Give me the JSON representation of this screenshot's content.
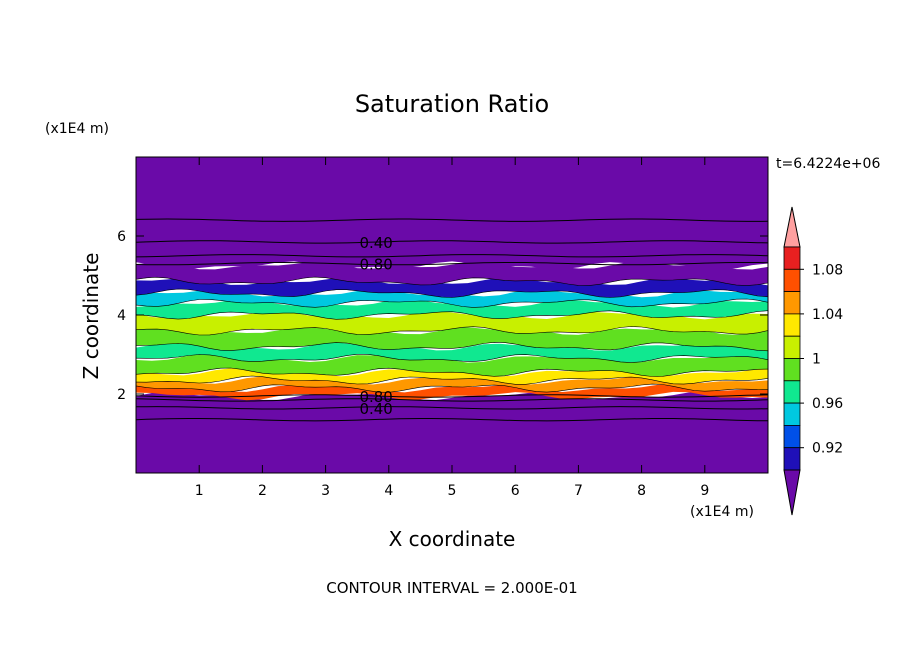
{
  "chart_data": {
    "type": "heatmap",
    "title": "Saturation Ratio",
    "xlabel": "X coordinate",
    "ylabel": "Z coordinate",
    "x_unit": "(x1E4 m)",
    "y_unit": "(x1E4 m)",
    "time_label": "t=6.4224e+06",
    "footer": "CONTOUR INTERVAL = 2.000E-01",
    "xlim": [
      0,
      10
    ],
    "ylim": [
      0,
      8
    ],
    "x_ticks": [
      "1",
      "2",
      "3",
      "4",
      "5",
      "6",
      "7",
      "8",
      "9"
    ],
    "y_ticks": [
      "2",
      "4",
      "6"
    ],
    "colorbar_labels": [
      "0.92",
      "0.96",
      "1",
      "1.04",
      "1.08"
    ],
    "colorbar_colors": [
      "#6a0aa8",
      "#1f10b8",
      "#0050e8",
      "#00c8e0",
      "#10e890",
      "#60e020",
      "#c8f000",
      "#ffe800",
      "#ff9800",
      "#ff5000",
      "#e82020",
      "#ffa0a0"
    ],
    "contour_labels": [
      {
        "text": "0.40",
        "x": 3.8,
        "z": 5.85
      },
      {
        "text": "0.80",
        "x": 3.8,
        "z": 5.3
      },
      {
        "text": "0.80",
        "x": 3.8,
        "z": 1.95
      },
      {
        "text": "0.40",
        "x": 3.8,
        "z": 1.65
      }
    ],
    "bands": [
      {
        "z0": 0.0,
        "z1": 1.95,
        "color": "#6a0aa8"
      },
      {
        "z0": 1.95,
        "z1": 2.15,
        "color": "#ff5000"
      },
      {
        "z0": 2.15,
        "z1": 2.35,
        "color": "#ff9800"
      },
      {
        "z0": 2.35,
        "z1": 2.55,
        "color": "#ffe800"
      },
      {
        "z0": 2.55,
        "z1": 2.9,
        "color": "#60e020"
      },
      {
        "z0": 2.9,
        "z1": 3.2,
        "color": "#10e890"
      },
      {
        "z0": 3.2,
        "z1": 3.6,
        "color": "#60e020"
      },
      {
        "z0": 3.6,
        "z1": 4.0,
        "color": "#c8f000"
      },
      {
        "z0": 4.0,
        "z1": 4.3,
        "color": "#10e890"
      },
      {
        "z0": 4.3,
        "z1": 4.55,
        "color": "#00c8e0"
      },
      {
        "z0": 4.55,
        "z1": 4.85,
        "color": "#1f10b8"
      },
      {
        "z0": 4.85,
        "z1": 5.25,
        "color": "#6a0aa8"
      },
      {
        "z0": 5.25,
        "z1": 8.0,
        "color": "#6a0aa8"
      }
    ],
    "contour_lines_z": [
      1.35,
      1.65,
      1.85,
      1.95,
      5.3,
      5.5,
      5.85,
      6.4
    ]
  }
}
